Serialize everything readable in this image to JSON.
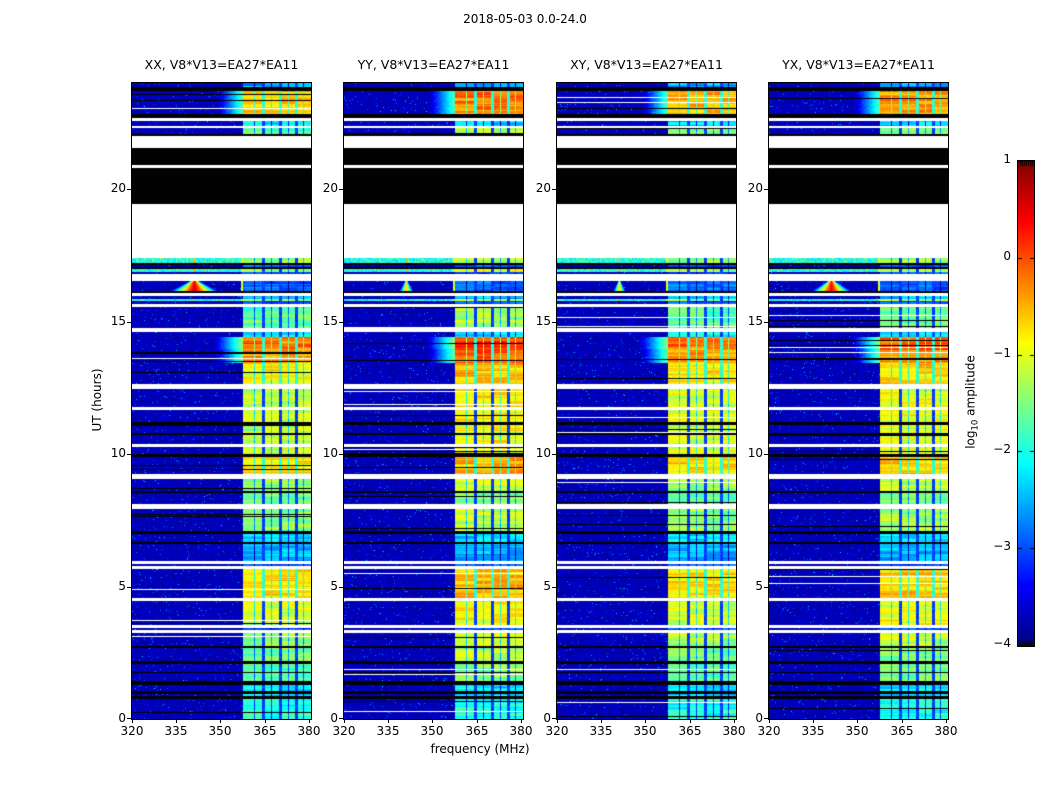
{
  "figure": {
    "title": "2018-05-03 0.0-24.0",
    "xlabel": "frequency (MHz)",
    "ylabel": "UT (hours)",
    "background_color": "#ffffff",
    "axis_color": "#000000"
  },
  "colorbar": {
    "label_pre": "log",
    "label_sub": "10",
    "label_post": " amplitude",
    "ticks": [
      "1",
      "0",
      "−1",
      "−2",
      "−3",
      "−4"
    ],
    "vmin": -4,
    "vmax": 1,
    "colormap": "jet"
  },
  "chart_data": {
    "type": "heatmap",
    "title": "2018-05-03 0.0-24.0",
    "xlabel": "frequency (MHz)",
    "ylabel": "UT (hours)",
    "value_label": "log10 amplitude",
    "xlim": [
      320,
      380.7
    ],
    "ylim": [
      0,
      24
    ],
    "x_ticks": [
      320,
      335,
      350,
      365,
      380
    ],
    "y_ticks": [
      0,
      5,
      10,
      15,
      20
    ],
    "value_scale": {
      "min": -4,
      "max": 1,
      "colormap": "jet"
    },
    "panels": [
      {
        "id": "XX",
        "title": "XX, V8*V13=EA27*EA11",
        "rfi_boost": 0.0,
        "flare": {
          "freq_mhz": 341,
          "amplitude_log": 0.5,
          "width_mhz": 2.6
        }
      },
      {
        "id": "YY",
        "title": "YY, V8*V13=EA27*EA11",
        "rfi_boost": 0.3,
        "flare": {
          "freq_mhz": 341,
          "amplitude_log": -0.7,
          "width_mhz": 1.0
        }
      },
      {
        "id": "XY",
        "title": "XY, V8*V13=EA27*EA11",
        "rfi_boost": 0.05,
        "flare": {
          "freq_mhz": 341,
          "amplitude_log": -0.75,
          "width_mhz": 0.9
        }
      },
      {
        "id": "YX",
        "title": "YX, V8*V13=EA27*EA11",
        "rfi_boost": 0.15,
        "flare": {
          "freq_mhz": 341,
          "amplitude_log": 0.35,
          "width_mhz": 2.2
        }
      }
    ],
    "rfi_band": {
      "range_mhz": [
        357.5,
        380.4
      ],
      "columns_mhz": [
        [
          357.5,
          363.8
        ],
        [
          364.8,
          369.8
        ],
        [
          370.8,
          375.2
        ],
        [
          376.2,
          380.4
        ]
      ],
      "inner_dark_lines_mhz": [
        361.3,
        367.2,
        373.0,
        378.0
      ]
    },
    "time_segments_format": "[hour_top, hour_bottom, type(n=noise,k=black,w=white,c=cyan-band), rfi_log_amplitude(0=none), optional_flag(lead|flare)]",
    "time_segments": [
      [
        24.0,
        23.85,
        "n",
        -2.6
      ],
      [
        23.85,
        23.73,
        "k",
        0
      ],
      [
        23.73,
        22.86,
        "n",
        -0.55,
        "lead"
      ],
      [
        22.86,
        22.71,
        "k",
        0
      ],
      [
        22.71,
        22.6,
        "w",
        0
      ],
      [
        22.6,
        22.41,
        "n",
        -2.3
      ],
      [
        22.41,
        22.33,
        "w",
        0
      ],
      [
        22.33,
        22.11,
        "n",
        -1.6
      ],
      [
        22.11,
        22.0,
        "k",
        0
      ],
      [
        22.0,
        21.58,
        "w",
        0
      ],
      [
        21.58,
        20.94,
        "k",
        0
      ],
      [
        20.94,
        20.83,
        "w",
        0
      ],
      [
        20.83,
        19.47,
        "k",
        0
      ],
      [
        19.47,
        17.43,
        "w",
        0
      ],
      [
        17.43,
        17.24,
        "c",
        -1.5
      ],
      [
        17.24,
        17.16,
        "k",
        0
      ],
      [
        17.16,
        17.08,
        "n",
        -3.0
      ],
      [
        17.08,
        17.01,
        "k",
        0
      ],
      [
        17.01,
        16.89,
        "c",
        -1.3
      ],
      [
        16.89,
        16.82,
        "n",
        -3.0
      ],
      [
        16.82,
        16.55,
        "w",
        0
      ],
      [
        16.55,
        16.17,
        "n",
        -2.9,
        "flare"
      ],
      [
        16.17,
        16.1,
        "k",
        0
      ],
      [
        16.1,
        15.98,
        "w",
        0
      ],
      [
        15.98,
        15.87,
        "n",
        -2.4
      ],
      [
        15.87,
        15.8,
        "c",
        -1.4
      ],
      [
        15.8,
        15.68,
        "n",
        -3.0
      ],
      [
        15.68,
        15.57,
        "w",
        0
      ],
      [
        15.57,
        14.78,
        "n",
        -1.7
      ],
      [
        14.78,
        14.63,
        "w",
        0
      ],
      [
        14.63,
        14.44,
        "n",
        -2.2
      ],
      [
        14.44,
        13.98,
        "n",
        -0.25,
        "lead"
      ],
      [
        13.98,
        13.46,
        "n",
        -0.45,
        "lead"
      ],
      [
        13.46,
        12.66,
        "n",
        -0.9
      ],
      [
        12.66,
        12.47,
        "w",
        0
      ],
      [
        12.47,
        11.79,
        "n",
        -1.15
      ],
      [
        11.79,
        11.68,
        "w",
        0
      ],
      [
        11.68,
        11.22,
        "n",
        -1.15
      ],
      [
        11.22,
        11.11,
        "k",
        0
      ],
      [
        11.11,
        10.81,
        "n",
        -1.2
      ],
      [
        10.81,
        10.73,
        "k",
        0
      ],
      [
        10.73,
        10.39,
        "n",
        -1.2
      ],
      [
        10.39,
        10.28,
        "w",
        0
      ],
      [
        10.28,
        10.02,
        "n",
        -1.1
      ],
      [
        10.02,
        9.9,
        "k",
        0
      ],
      [
        9.9,
        9.26,
        "n",
        -0.8
      ],
      [
        9.26,
        9.07,
        "w",
        0
      ],
      [
        9.07,
        8.62,
        "n",
        -1.4
      ],
      [
        8.62,
        8.54,
        "k",
        0
      ],
      [
        8.54,
        8.13,
        "n",
        -1.7
      ],
      [
        8.13,
        7.94,
        "w",
        0
      ],
      [
        7.94,
        7.11,
        "n",
        -1.5
      ],
      [
        7.11,
        6.99,
        "k",
        0
      ],
      [
        6.99,
        6.69,
        "n",
        -2.3
      ],
      [
        6.69,
        6.61,
        "k",
        0
      ],
      [
        6.61,
        5.97,
        "n",
        -2.5
      ],
      [
        5.97,
        5.86,
        "w",
        0
      ],
      [
        5.86,
        5.78,
        "n",
        -3.0
      ],
      [
        5.78,
        5.67,
        "w",
        0
      ],
      [
        5.67,
        4.57,
        "n",
        -0.85
      ],
      [
        4.57,
        4.46,
        "w",
        0
      ],
      [
        4.46,
        3.55,
        "n",
        -1.15
      ],
      [
        3.55,
        3.44,
        "w",
        0
      ],
      [
        3.44,
        3.36,
        "n",
        -3.0
      ],
      [
        3.36,
        3.25,
        "w",
        0
      ],
      [
        3.25,
        2.76,
        "n",
        -1.4
      ],
      [
        2.76,
        2.68,
        "k",
        0
      ],
      [
        2.68,
        2.19,
        "n",
        -1.6
      ],
      [
        2.19,
        2.08,
        "k",
        0
      ],
      [
        2.08,
        1.81,
        "n",
        -1.7
      ],
      [
        1.81,
        1.74,
        "k",
        0
      ],
      [
        1.74,
        1.44,
        "n",
        -1.7
      ],
      [
        1.44,
        1.32,
        "k",
        0
      ],
      [
        1.32,
        1.06,
        "n",
        -2.2
      ],
      [
        1.06,
        0.98,
        "k",
        0
      ],
      [
        0.98,
        0.87,
        "n",
        -2.3
      ],
      [
        0.87,
        0.79,
        "k",
        0
      ],
      [
        0.79,
        0.0,
        "n",
        -2.0
      ]
    ]
  }
}
